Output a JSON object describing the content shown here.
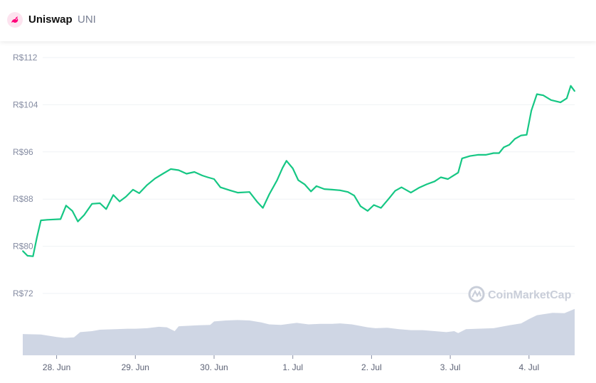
{
  "header": {
    "name": "Uniswap",
    "symbol": "UNI",
    "logo_icon": "uniswap-unicorn-icon"
  },
  "watermark": "CoinMarketCap",
  "colors": {
    "line": "#16c784",
    "volume": "#cfd6e4",
    "grid": "#eff2f5",
    "logo_bg": "#fde3ef",
    "logo_fg": "#ff007a"
  },
  "chart_data": {
    "type": "line",
    "y_ticks": [
      "R$112",
      "R$104",
      "R$96",
      "R$88",
      "R$80",
      "R$72"
    ],
    "y_tick_values": [
      112,
      104,
      96,
      88,
      80,
      72
    ],
    "ylim": [
      72,
      112
    ],
    "x_ticks": [
      "28. Jun",
      "29. Jun",
      "30. Jun",
      "1. Jul",
      "2. Jul",
      "3. Jul",
      "4. Jul"
    ],
    "xlim": [
      -0.43,
      6.58
    ],
    "grid": true,
    "series": [
      {
        "values": [
          [
            -0.43,
            79.2
          ],
          [
            -0.37,
            78.4
          ],
          [
            -0.3,
            78.3
          ],
          [
            -0.25,
            81.5
          ],
          [
            -0.2,
            84.4
          ],
          [
            -0.12,
            84.5
          ],
          [
            0.05,
            84.6
          ],
          [
            0.12,
            86.9
          ],
          [
            0.2,
            86.0
          ],
          [
            0.27,
            84.2
          ],
          [
            0.35,
            85.3
          ],
          [
            0.45,
            87.2
          ],
          [
            0.55,
            87.3
          ],
          [
            0.63,
            86.3
          ],
          [
            0.72,
            88.7
          ],
          [
            0.8,
            87.6
          ],
          [
            0.88,
            88.4
          ],
          [
            0.97,
            89.6
          ],
          [
            1.05,
            89.0
          ],
          [
            1.15,
            90.4
          ],
          [
            1.25,
            91.5
          ],
          [
            1.35,
            92.3
          ],
          [
            1.45,
            93.1
          ],
          [
            1.55,
            92.9
          ],
          [
            1.65,
            92.3
          ],
          [
            1.75,
            92.6
          ],
          [
            1.85,
            92.0
          ],
          [
            1.92,
            91.7
          ],
          [
            2.0,
            91.4
          ],
          [
            2.08,
            90.0
          ],
          [
            2.2,
            89.5
          ],
          [
            2.3,
            89.1
          ],
          [
            2.45,
            89.2
          ],
          [
            2.55,
            87.5
          ],
          [
            2.62,
            86.5
          ],
          [
            2.7,
            88.8
          ],
          [
            2.8,
            91.2
          ],
          [
            2.87,
            93.3
          ],
          [
            2.92,
            94.5
          ],
          [
            3.0,
            93.2
          ],
          [
            3.07,
            91.2
          ],
          [
            3.15,
            90.5
          ],
          [
            3.23,
            89.3
          ],
          [
            3.3,
            90.2
          ],
          [
            3.4,
            89.7
          ],
          [
            3.5,
            89.6
          ],
          [
            3.6,
            89.5
          ],
          [
            3.7,
            89.2
          ],
          [
            3.78,
            88.6
          ],
          [
            3.86,
            86.8
          ],
          [
            3.95,
            86.0
          ],
          [
            4.03,
            87.0
          ],
          [
            4.12,
            86.5
          ],
          [
            4.22,
            88.1
          ],
          [
            4.3,
            89.4
          ],
          [
            4.38,
            90.0
          ],
          [
            4.5,
            89.1
          ],
          [
            4.6,
            89.9
          ],
          [
            4.7,
            90.5
          ],
          [
            4.8,
            91.0
          ],
          [
            4.88,
            91.7
          ],
          [
            4.97,
            91.4
          ],
          [
            5.1,
            92.5
          ],
          [
            5.15,
            94.9
          ],
          [
            5.25,
            95.3
          ],
          [
            5.35,
            95.5
          ],
          [
            5.45,
            95.5
          ],
          [
            5.55,
            95.8
          ],
          [
            5.62,
            95.8
          ],
          [
            5.68,
            96.8
          ],
          [
            5.75,
            97.2
          ],
          [
            5.82,
            98.2
          ],
          [
            5.9,
            98.8
          ],
          [
            5.97,
            98.9
          ],
          [
            6.03,
            103.0
          ],
          [
            6.1,
            105.8
          ],
          [
            6.18,
            105.6
          ],
          [
            6.28,
            104.8
          ],
          [
            6.4,
            104.4
          ],
          [
            6.48,
            105.1
          ],
          [
            6.53,
            107.2
          ],
          [
            6.58,
            106.3
          ]
        ]
      }
    ],
    "volume": {
      "values": [
        [
          -0.43,
          0.44
        ],
        [
          -0.2,
          0.43
        ],
        [
          0.0,
          0.38
        ],
        [
          0.1,
          0.36
        ],
        [
          0.22,
          0.37
        ],
        [
          0.3,
          0.48
        ],
        [
          0.45,
          0.5
        ],
        [
          0.55,
          0.53
        ],
        [
          0.75,
          0.54
        ],
        [
          0.9,
          0.55
        ],
        [
          1.0,
          0.55
        ],
        [
          1.15,
          0.56
        ],
        [
          1.3,
          0.59
        ],
        [
          1.4,
          0.58
        ],
        [
          1.5,
          0.5
        ],
        [
          1.55,
          0.6
        ],
        [
          1.8,
          0.62
        ],
        [
          1.95,
          0.63
        ],
        [
          2.0,
          0.7
        ],
        [
          2.15,
          0.72
        ],
        [
          2.3,
          0.73
        ],
        [
          2.45,
          0.72
        ],
        [
          2.6,
          0.68
        ],
        [
          2.7,
          0.64
        ],
        [
          2.85,
          0.63
        ],
        [
          2.95,
          0.65
        ],
        [
          3.05,
          0.67
        ],
        [
          3.2,
          0.64
        ],
        [
          3.35,
          0.65
        ],
        [
          3.5,
          0.65
        ],
        [
          3.6,
          0.66
        ],
        [
          3.75,
          0.64
        ],
        [
          3.95,
          0.58
        ],
        [
          4.05,
          0.56
        ],
        [
          4.2,
          0.57
        ],
        [
          4.35,
          0.54
        ],
        [
          4.5,
          0.52
        ],
        [
          4.65,
          0.52
        ],
        [
          4.8,
          0.5
        ],
        [
          4.95,
          0.48
        ],
        [
          5.05,
          0.5
        ],
        [
          5.1,
          0.46
        ],
        [
          5.2,
          0.54
        ],
        [
          5.35,
          0.55
        ],
        [
          5.55,
          0.56
        ],
        [
          5.75,
          0.62
        ],
        [
          5.9,
          0.66
        ],
        [
          6.0,
          0.75
        ],
        [
          6.1,
          0.83
        ],
        [
          6.3,
          0.88
        ],
        [
          6.45,
          0.87
        ],
        [
          6.58,
          0.96
        ]
      ]
    }
  }
}
